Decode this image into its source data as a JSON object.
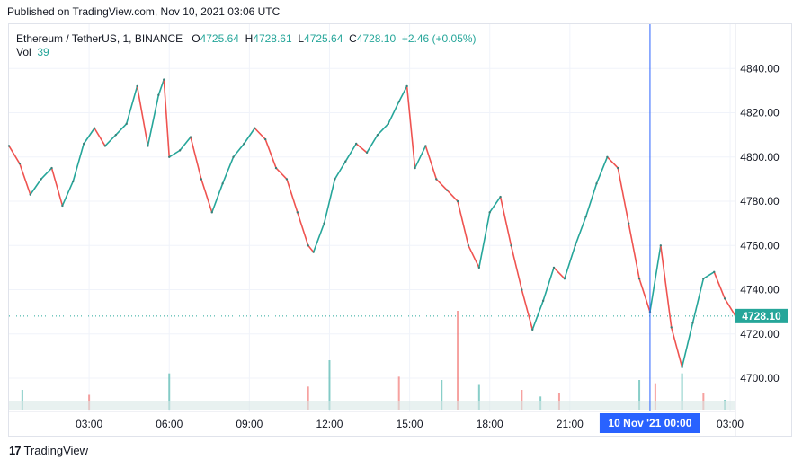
{
  "header": {
    "published": "Published on TradingView.com, Nov 10, 2021 03:06 UTC"
  },
  "legend": {
    "symbol": "Ethereum / TetherUS, 1, BINANCE",
    "o_label": "O",
    "o_value": "4725.64",
    "h_label": "H",
    "h_value": "4728.61",
    "l_label": "L",
    "l_value": "4725.64",
    "c_label": "C",
    "c_value": "4728.10",
    "change": "+2.46 (+0.05%)",
    "vol_label": "Vol",
    "vol_value": "39"
  },
  "footer": {
    "brand": "TradingView"
  },
  "colors": {
    "up": "#26a69a",
    "down": "#ef5350",
    "crosshair": "#2962ff",
    "price_tag": "#26a69a",
    "grid": "#f0f3fa"
  },
  "chart_data": {
    "type": "line",
    "title": "Ethereum / TetherUS, 1, BINANCE",
    "xlabel": "",
    "ylabel": "",
    "ylim": [
      4685,
      4860
    ],
    "y_ticks": [
      4700,
      4720,
      4740,
      4760,
      4780,
      4800,
      4820,
      4840
    ],
    "y_tick_labels": [
      "4700.00",
      "4720.00",
      "4740.00",
      "4760.00",
      "4780.00",
      "4800.00",
      "4820.00",
      "4840.00"
    ],
    "x_ticks": [
      3,
      6,
      9,
      12,
      15,
      18,
      21,
      27
    ],
    "x_tick_labels": [
      "03:00",
      "06:00",
      "09:00",
      "12:00",
      "15:00",
      "18:00",
      "21:00",
      "03:00"
    ],
    "crosshair_label": "10 Nov '21   00:00",
    "crosshair_x": 24,
    "last_price": 4728.1,
    "last_price_label": "4728.10",
    "grid": true,
    "series": [
      {
        "x": [
          0.0,
          0.4,
          0.8,
          1.2,
          1.6,
          2.0,
          2.4,
          2.8,
          3.2,
          3.6,
          4.0,
          4.4,
          4.8,
          5.2,
          5.6,
          5.8,
          6.0,
          6.4,
          6.8,
          7.2,
          7.6,
          8.0,
          8.4,
          8.8,
          9.2,
          9.6,
          10.0,
          10.4,
          10.8,
          11.2,
          11.4,
          11.8,
          12.2,
          12.6,
          13.0,
          13.4,
          13.8,
          14.2,
          14.6,
          14.9,
          15.2,
          15.6,
          16.0,
          16.4,
          16.8,
          17.2,
          17.6,
          18.0,
          18.4,
          18.8,
          19.2,
          19.6,
          20.0,
          20.4,
          20.8,
          21.2,
          21.6,
          22.0,
          22.4,
          22.8,
          23.2,
          23.6,
          24.0,
          24.4,
          24.8,
          25.2,
          25.6,
          26.0,
          26.4,
          26.8,
          27.2
        ],
        "values": [
          4805,
          4797,
          4783,
          4790,
          4795,
          4778,
          4789,
          4806,
          4813,
          4805,
          4810,
          4815,
          4832,
          4805,
          4828,
          4835,
          4800,
          4803,
          4809,
          4790,
          4775,
          4788,
          4800,
          4806,
          4813,
          4808,
          4795,
          4790,
          4775,
          4760,
          4757,
          4770,
          4790,
          4798,
          4806,
          4802,
          4810,
          4815,
          4825,
          4832,
          4795,
          4805,
          4790,
          4785,
          4780,
          4760,
          4750,
          4775,
          4782,
          4760,
          4740,
          4722,
          4735,
          4750,
          4745,
          4760,
          4773,
          4788,
          4800,
          4795,
          4770,
          4745,
          4730,
          4760,
          4723,
          4705,
          4725,
          4745,
          4748,
          4736,
          4728.1
        ]
      }
    ],
    "volume": {
      "x": [
        0.5,
        3.0,
        6.0,
        11.2,
        12.0,
        14.6,
        16.2,
        16.8,
        17.6,
        19.2,
        19.9,
        20.6,
        23.6,
        24.2,
        25.2,
        26.0,
        26.8
      ],
      "values": [
        12,
        9,
        22,
        14,
        30,
        20,
        18,
        60,
        15,
        12,
        8,
        10,
        18,
        16,
        22,
        10,
        6
      ]
    }
  }
}
